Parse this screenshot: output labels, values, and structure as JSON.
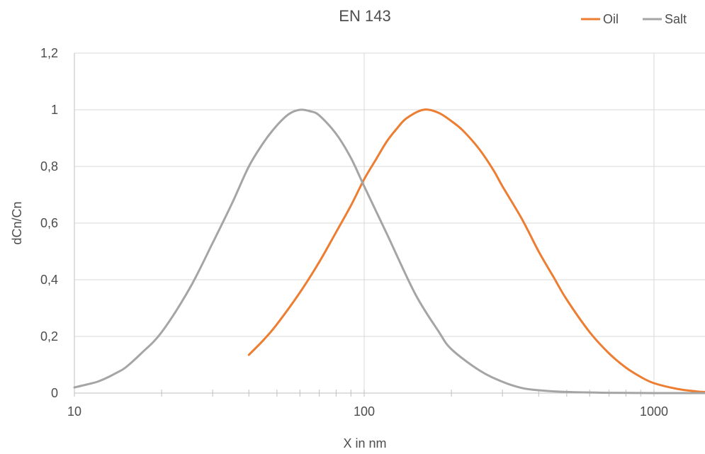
{
  "chart_data": {
    "type": "line",
    "title": "EN 143",
    "xlabel": "X in nm",
    "ylabel": "dCn/Cn",
    "x_scale": "log",
    "xlim": [
      10,
      1500
    ],
    "ylim": [
      0,
      1.2
    ],
    "x_ticks": [
      {
        "value": 10,
        "label": "10"
      },
      {
        "value": 100,
        "label": "100"
      },
      {
        "value": 1000,
        "label": "1000"
      }
    ],
    "x_minor_ticks": [
      20,
      30,
      40,
      50,
      60,
      70,
      80,
      90,
      200,
      300,
      400,
      500,
      600,
      700,
      800,
      900
    ],
    "y_ticks": [
      {
        "value": 0,
        "label": "0"
      },
      {
        "value": 0.2,
        "label": "0,2"
      },
      {
        "value": 0.4,
        "label": "0,4"
      },
      {
        "value": 0.6,
        "label": "0,6"
      },
      {
        "value": 0.8,
        "label": "0,8"
      },
      {
        "value": 1.0,
        "label": "1"
      },
      {
        "value": 1.2,
        "label": "1,2"
      }
    ],
    "grid": true,
    "legend_position": "top-right",
    "series": [
      {
        "name": "Oil",
        "color": "#ED7D31",
        "points": [
          [
            40,
            0.135
          ],
          [
            45,
            0.188
          ],
          [
            50,
            0.243
          ],
          [
            60,
            0.355
          ],
          [
            70,
            0.463
          ],
          [
            80,
            0.568
          ],
          [
            90,
            0.662
          ],
          [
            100,
            0.755
          ],
          [
            110,
            0.826
          ],
          [
            120,
            0.89
          ],
          [
            130,
            0.935
          ],
          [
            140,
            0.97
          ],
          [
            160,
            1.0
          ],
          [
            180,
            0.99
          ],
          [
            200,
            0.96
          ],
          [
            220,
            0.925
          ],
          [
            250,
            0.86
          ],
          [
            280,
            0.785
          ],
          [
            300,
            0.73
          ],
          [
            350,
            0.615
          ],
          [
            400,
            0.5
          ],
          [
            450,
            0.41
          ],
          [
            500,
            0.33
          ],
          [
            600,
            0.215
          ],
          [
            700,
            0.14
          ],
          [
            800,
            0.09
          ],
          [
            900,
            0.057
          ],
          [
            1000,
            0.035
          ],
          [
            1200,
            0.015
          ],
          [
            1400,
            0.006
          ],
          [
            1500,
            0.004
          ]
        ]
      },
      {
        "name": "Salt",
        "color": "#A5A5A5",
        "points": [
          [
            10,
            0.02
          ],
          [
            11,
            0.03
          ],
          [
            12,
            0.04
          ],
          [
            13,
            0.055
          ],
          [
            14,
            0.072
          ],
          [
            15,
            0.09
          ],
          [
            17,
            0.14
          ],
          [
            20,
            0.215
          ],
          [
            25,
            0.37
          ],
          [
            30,
            0.53
          ],
          [
            35,
            0.67
          ],
          [
            40,
            0.8
          ],
          [
            45,
            0.885
          ],
          [
            50,
            0.945
          ],
          [
            55,
            0.985
          ],
          [
            60,
            1.0
          ],
          [
            65,
            0.995
          ],
          [
            70,
            0.98
          ],
          [
            80,
            0.915
          ],
          [
            90,
            0.83
          ],
          [
            100,
            0.73
          ],
          [
            120,
            0.56
          ],
          [
            150,
            0.35
          ],
          [
            180,
            0.22
          ],
          [
            200,
            0.155
          ],
          [
            250,
            0.08
          ],
          [
            300,
            0.04
          ],
          [
            350,
            0.018
          ],
          [
            400,
            0.01
          ],
          [
            500,
            0.004
          ],
          [
            700,
            0.001
          ],
          [
            1000,
            0.0
          ],
          [
            1500,
            0.0
          ]
        ]
      }
    ]
  }
}
